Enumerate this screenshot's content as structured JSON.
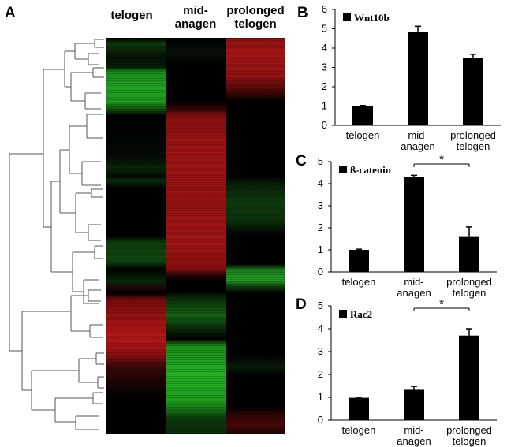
{
  "panel_a": {
    "letter": "A",
    "columns": [
      {
        "line1": "telogen",
        "line2": ""
      },
      {
        "line1": "mid-",
        "line2": "anagen"
      },
      {
        "line1": "prolonged",
        "line2": "telogen"
      }
    ]
  },
  "colors": {
    "up": "#c81414",
    "down": "#1ec81e",
    "neutral": "#000000",
    "bar": "#000000"
  },
  "chart_data": [
    {
      "panel": "B",
      "type": "bar",
      "title": "Wnt10b",
      "categories": [
        "telogen",
        "mid-anagen",
        "prolonged telogen"
      ],
      "tick_labels": [
        [
          "telogen"
        ],
        [
          "mid-",
          "anagen"
        ],
        [
          "prolonged",
          "telogen"
        ]
      ],
      "values": [
        1.0,
        4.85,
        3.5
      ],
      "errors": [
        0.03,
        0.28,
        0.18
      ],
      "ylim": [
        0,
        6
      ],
      "yticks": [
        0,
        1,
        2,
        3,
        4,
        5,
        6
      ],
      "significance": null
    },
    {
      "panel": "C",
      "type": "bar",
      "title": "ß-catenin",
      "categories": [
        "telogen",
        "mid-anagen",
        "prolonged telogen"
      ],
      "tick_labels": [
        [
          "telogen"
        ],
        [
          "mid-",
          "anagen"
        ],
        [
          "prolonged",
          "telogen"
        ]
      ],
      "values": [
        1.0,
        4.3,
        1.62
      ],
      "errors": [
        0.03,
        0.08,
        0.42
      ],
      "ylim": [
        0,
        5
      ],
      "yticks": [
        0,
        1,
        2,
        3,
        4,
        5
      ],
      "significance": {
        "from": 1,
        "to": 2,
        "label": "*"
      }
    },
    {
      "panel": "D",
      "type": "bar",
      "title": "Rac2",
      "categories": [
        "telogen",
        "mid-anagen",
        "prolonged telogen"
      ],
      "tick_labels": [
        [
          "telogen"
        ],
        [
          "mid-",
          "anagen"
        ],
        [
          "prolonged",
          "telogen"
        ]
      ],
      "values": [
        0.98,
        1.33,
        3.7
      ],
      "errors": [
        0.03,
        0.15,
        0.3
      ],
      "ylim": [
        0,
        5
      ],
      "yticks": [
        0,
        1,
        2,
        3,
        4,
        5
      ],
      "significance": {
        "from": 1,
        "to": 2,
        "label": "*"
      }
    }
  ]
}
